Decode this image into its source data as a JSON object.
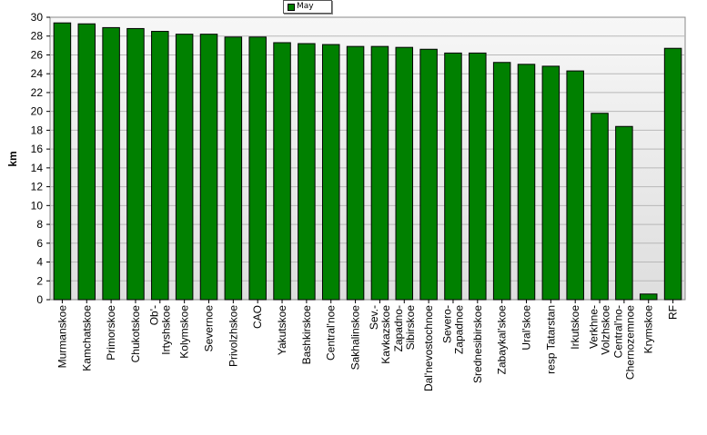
{
  "chart_data": {
    "type": "bar",
    "ylabel": "km",
    "xlabel": "",
    "ylim": [
      0,
      30
    ],
    "ytick_step": 2,
    "grid": true,
    "legend_position": "top",
    "bar_color": "#008000",
    "categories": [
      "Murmanskoe",
      "Kamchatskoe",
      "Primorskoe",
      "Chukotskoe",
      "Ob'-Irtyshskoe",
      "Kolymskoe",
      "Severnoe",
      "Privolzhskoe",
      "CAO",
      "Yakutskoe",
      "Bashkirskoe",
      "Central'noe",
      "Sakhalinskoe",
      "Sev.-Kavkazskoe",
      "Zapadno-Sibirskoe",
      "Dal'nevostochnoe",
      "Severo-Zapadnoe",
      "Srednesibirskoe",
      "Zabaykal'skoe",
      "Ural'skoe",
      "resp Tatarstan",
      "Irkutskoe",
      "Verkhne-Volzhskoe",
      "Central'no-Chernozemnoe",
      "Krymskoe",
      "RF"
    ],
    "label_lines": [
      [
        "Murmanskoe"
      ],
      [
        "Kamchatskoe"
      ],
      [
        "Primorskoe"
      ],
      [
        "Chukotskoe"
      ],
      [
        "Ob'-",
        "Irtyshskoe"
      ],
      [
        "Kolymskoe"
      ],
      [
        "Severnoe"
      ],
      [
        "Privolzhskoe"
      ],
      [
        "CAO"
      ],
      [
        "Yakutskoe"
      ],
      [
        "Bashkirskoe"
      ],
      [
        "Central'noe"
      ],
      [
        "Sakhalinskoe"
      ],
      [
        "Sev.-",
        "Kavkazskoe"
      ],
      [
        "Zapadno-",
        "Sibirskoe"
      ],
      [
        "Dal'nevostochnoe"
      ],
      [
        "Severo-",
        "Zapadnoe"
      ],
      [
        "Srednesibirskoe"
      ],
      [
        "Zabaykal'skoe"
      ],
      [
        "Ural'skoe"
      ],
      [
        "resp Tatarstan"
      ],
      [
        "Irkutskoe"
      ],
      [
        "Verkhne-",
        "Volzhskoe"
      ],
      [
        "Central'no-",
        "Chernozemnoe"
      ],
      [
        "Krymskoe"
      ],
      [
        "RF"
      ]
    ],
    "series": [
      {
        "name": "May",
        "values": [
          29.4,
          29.3,
          28.9,
          28.8,
          28.5,
          28.2,
          28.2,
          27.9,
          27.9,
          27.3,
          27.2,
          27.1,
          26.9,
          26.9,
          26.8,
          26.6,
          26.2,
          26.2,
          25.2,
          25.0,
          24.8,
          24.3,
          19.8,
          18.4,
          0.6,
          26.7
        ]
      }
    ]
  }
}
